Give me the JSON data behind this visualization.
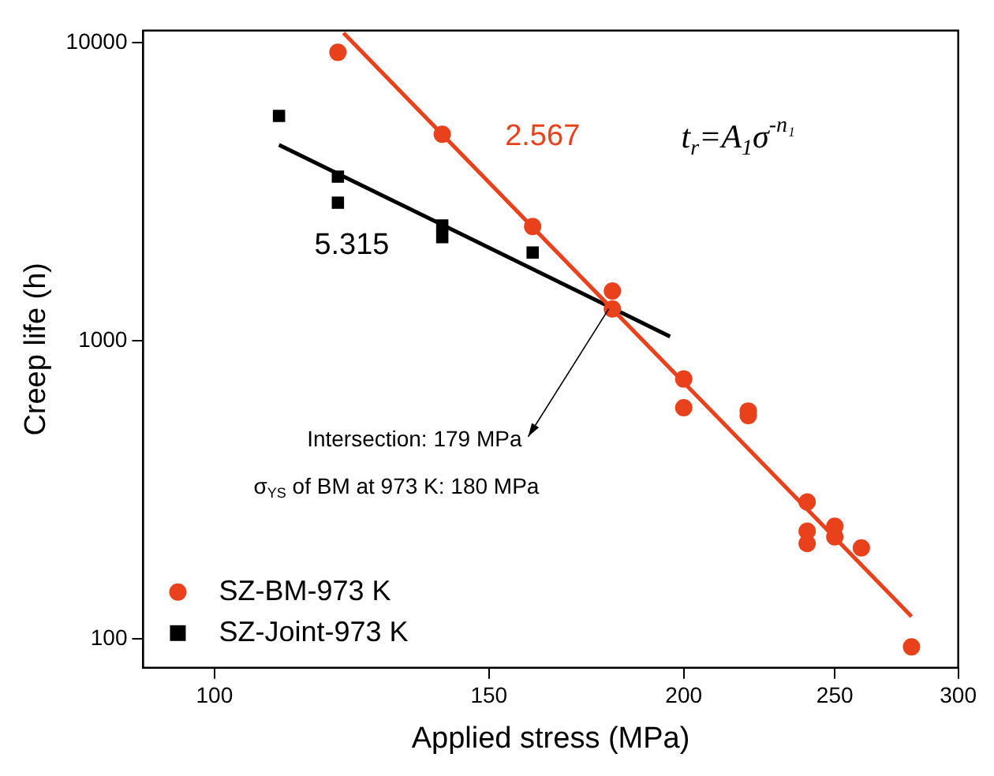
{
  "chart_data": {
    "type": "scatter",
    "xlabel": "Applied stress (MPa)",
    "ylabel": "Creep life (h)",
    "log": "xy",
    "xlim": [
      90,
      300
    ],
    "ylim": [
      80,
      11000
    ],
    "xticks": [
      100,
      150,
      200,
      250,
      300
    ],
    "yticks": [
      100,
      1000,
      10000
    ],
    "grid": false,
    "legend": "bottom left",
    "series": [
      {
        "name": "SZ-BM-973 K",
        "marker": "circle",
        "color": "#e8411c",
        "x": [
          120,
          140,
          160,
          180,
          180,
          200,
          200,
          220,
          220,
          240,
          240,
          240,
          250,
          250,
          260,
          280
        ],
        "values": [
          9300,
          4940,
          2420,
          1470,
          1280,
          745,
          597,
          582,
          562,
          288,
          230,
          209,
          239,
          220,
          202,
          94
        ]
      },
      {
        "name": "SZ-Joint-973 K",
        "marker": "square",
        "color": "#000000",
        "x": [
          110,
          120,
          120,
          140,
          140,
          160
        ],
        "values": [
          5690,
          3560,
          2910,
          2440,
          2230,
          1980
        ]
      },
      {
        "type": "line",
        "marker": "none",
        "color": "#e8411c",
        "x": [
          121,
          280
        ],
        "values": [
          10800,
          119
        ]
      },
      {
        "type": "line",
        "marker": "none",
        "color": "#000000",
        "x": [
          110,
          196
        ],
        "values": [
          4550,
          1035
        ]
      }
    ],
    "annotations": [
      "2.567",
      "5.315",
      "t$_{r}$=A$_{1}$σ$^{-n₁}$",
      {
        "text": "Intersection: 179 MPa",
        "x": 179,
        "y": 1280
      },
      "σ$_{YS}$ of BM at 973 K: 180 MPa"
    ]
  }
}
